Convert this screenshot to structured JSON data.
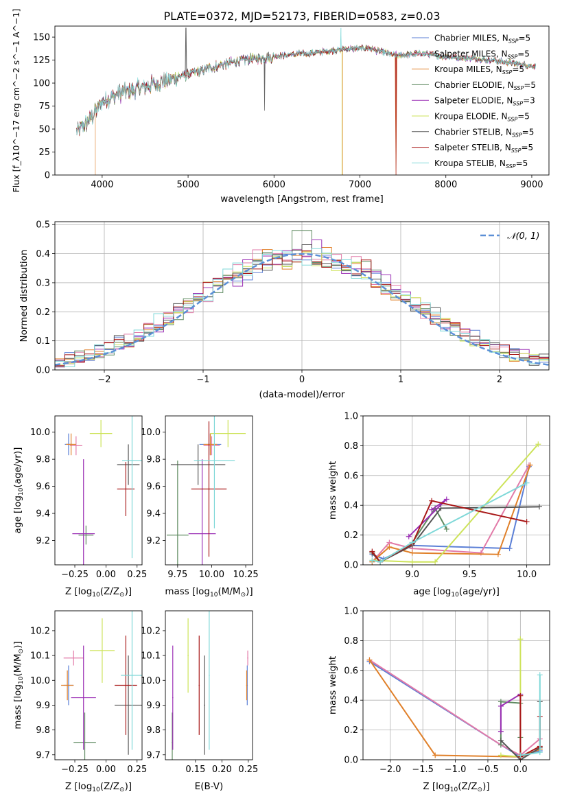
{
  "figure_title": "PLATE=0372, MJD=52173, FIBERID=0583, z=0.03",
  "colors": {
    "Chabrier MILES": "#5b7fd6",
    "Salpeter MILES": "#e27aa8",
    "Kroupa MILES": "#e0802a",
    "Chabrier ELODIE": "#5e8a60",
    "Salpeter ELODIE": "#9b2fb5",
    "Kroupa ELODIE": "#cde35a",
    "Chabrier STELIB": "#555555",
    "Salpeter STELIB": "#a81818",
    "Kroupa STELIB": "#7fd8d8"
  },
  "chart_data": [
    {
      "id": "spectrum",
      "type": "line",
      "xlabel": "wavelength [Angstrom, rest frame]",
      "ylabel": "Flux [f_λ10^−17 erg cm^−2 s^−1 A^−1]",
      "xlim": [
        3450,
        9200
      ],
      "ylim": [
        0,
        162
      ],
      "xticks": [
        4000,
        5000,
        6000,
        7000,
        8000,
        9000
      ],
      "yticks": [
        0,
        25,
        50,
        75,
        100,
        125,
        150
      ],
      "grid": false,
      "legend_position": "upper-right",
      "legend": [
        {
          "name": "Chabrier MILES",
          "label_base": "Chabrier MILES, N",
          "sub": "SSP",
          "suffix": "=5"
        },
        {
          "name": "Salpeter MILES",
          "label_base": "Salpeter MILES, N",
          "sub": "SSP",
          "suffix": "=5"
        },
        {
          "name": "Kroupa MILES",
          "label_base": "Kroupa MILES, N",
          "sub": "SSP",
          "suffix": "=5"
        },
        {
          "name": "Chabrier ELODIE",
          "label_base": "Chabrier ELODIE, N",
          "sub": "SSP",
          "suffix": "=5"
        },
        {
          "name": "Salpeter ELODIE",
          "label_base": "Salpeter ELODIE, N",
          "sub": "SSP",
          "suffix": "=3"
        },
        {
          "name": "Kroupa ELODIE",
          "label_base": "Kroupa ELODIE, N",
          "sub": "SSP",
          "suffix": "=5"
        },
        {
          "name": "Chabrier STELIB",
          "label_base": "Chabrier STELIB, N",
          "sub": "SSP",
          "suffix": "=5"
        },
        {
          "name": "Salpeter STELIB",
          "label_base": "Salpeter STELIB, N",
          "sub": "SSP",
          "suffix": "=5"
        },
        {
          "name": "Kroupa STELIB",
          "label_base": "Kroupa STELIB, N",
          "sub": "SSP",
          "suffix": "=5"
        }
      ],
      "continuum": {
        "x": [
          3700,
          3850,
          4000,
          4200,
          4500,
          4800,
          5000,
          5300,
          5600,
          5900,
          6200,
          6500,
          6800,
          7100,
          7400,
          7700,
          8000,
          8300,
          8600,
          8900,
          9050
        ],
        "y": [
          48,
          60,
          80,
          90,
          97,
          105,
          110,
          118,
          125,
          128,
          131,
          133,
          137,
          138,
          130,
          132,
          129,
          127,
          124,
          120,
          118
        ]
      },
      "dropouts": [
        {
          "series": "Kroupa MILES",
          "x": 3920
        },
        {
          "series": "Kroupa MILES",
          "x": 6800
        },
        {
          "series": "Kroupa MILES",
          "x": 7420
        },
        {
          "series": "Kroupa ELODIE",
          "x": 6790
        },
        {
          "series": "Salpeter STELIB",
          "x": 7420
        }
      ],
      "spikes": [
        {
          "series": "Chabrier STELIB",
          "x": 4975,
          "y": 160
        },
        {
          "series": "Chabrier STELIB",
          "x": 5890,
          "y": 70
        },
        {
          "series": "Kroupa STELIB",
          "x": 6780,
          "y": 160
        }
      ]
    },
    {
      "id": "residuals",
      "type": "histogram",
      "xlabel": "(data-model)/error",
      "ylabel": "Normed distribution",
      "xlim": [
        -2.5,
        2.5
      ],
      "ylim": [
        0,
        0.51
      ],
      "xticks": [
        -2,
        -1,
        0,
        1,
        2
      ],
      "yticks": [
        0.0,
        0.1,
        0.2,
        0.3,
        0.4,
        0.5
      ],
      "grid": true,
      "legend_position": "upper-right",
      "legend_label": "𝒩(0, 1)",
      "reference_curve": {
        "name": "𝒩(0, 1)",
        "mean": 0,
        "sigma": 1,
        "color": "#5b8fd6"
      },
      "bin_width": 0.1
    },
    {
      "id": "z_age",
      "type": "errorbar",
      "xlabel_pre": "Z [log",
      "xlabel_post": "(Z/Z",
      "xlabel_end": ")]",
      "ylabel_pre": "age  [log",
      "ylabel_post": "(age/yr)]",
      "xlim": [
        -0.41,
        0.29
      ],
      "ylim": [
        9.02,
        10.12
      ],
      "xticks": [
        -0.25,
        0.0,
        0.25
      ],
      "xtick_labels": [
        "−0.25",
        "0.00",
        "0.25"
      ],
      "yticks": [
        9.2,
        9.4,
        9.6,
        9.8,
        10.0
      ],
      "points": [
        {
          "series": "Chabrier MILES",
          "x": -0.3,
          "xerr": 0.03,
          "y": 9.91,
          "yerr": 0.08
        },
        {
          "series": "Salpeter MILES",
          "x": -0.24,
          "xerr": 0.05,
          "y": 9.9,
          "yerr": 0.07
        },
        {
          "series": "Kroupa MILES",
          "x": -0.28,
          "xerr": 0.04,
          "y": 9.91,
          "yerr": 0.08
        },
        {
          "series": "Chabrier ELODIE",
          "x": -0.16,
          "xerr": 0.06,
          "y": 9.24,
          "yerr": 0.07
        },
        {
          "series": "Salpeter ELODIE",
          "x": -0.18,
          "xerr": 0.09,
          "y": 9.25,
          "yerr": 0.55
        },
        {
          "series": "Kroupa ELODIE",
          "x": -0.04,
          "xerr": 0.09,
          "y": 9.99,
          "yerr": 0.1
        },
        {
          "series": "Chabrier STELIB",
          "x": 0.18,
          "xerr": 0.09,
          "y": 9.76,
          "yerr": 0.15
        },
        {
          "series": "Salpeter STELIB",
          "x": 0.16,
          "xerr": 0.07,
          "y": 9.58,
          "yerr": 0.2
        },
        {
          "series": "Kroupa STELIB",
          "x": 0.21,
          "xerr": 0.08,
          "y": 9.79,
          "yerr": 0.72
        }
      ]
    },
    {
      "id": "mass_age",
      "type": "errorbar",
      "xlabel_pre": "mass [log",
      "xlabel_post": "(M/M",
      "xlabel_end": ")]",
      "ylabel_pre": "",
      "ylabel_post": "",
      "xlim": [
        9.66,
        10.3
      ],
      "ylim": [
        9.02,
        10.12
      ],
      "xticks": [
        9.75,
        10.0,
        10.25
      ],
      "xtick_labels": [
        "9.75",
        "10.00",
        "10.25"
      ],
      "yticks": [
        9.2,
        9.4,
        9.6,
        9.8,
        10.0
      ],
      "points": [
        {
          "series": "Chabrier MILES",
          "x": 9.99,
          "xerr": 0.08,
          "y": 9.91,
          "yerr": 0.08
        },
        {
          "series": "Salpeter MILES",
          "x": 10.0,
          "xerr": 0.06,
          "y": 9.9,
          "yerr": 0.07
        },
        {
          "series": "Kroupa MILES",
          "x": 9.99,
          "xerr": 0.05,
          "y": 9.91,
          "yerr": 0.08
        },
        {
          "series": "Chabrier ELODIE",
          "x": 9.75,
          "xerr": 0.08,
          "y": 9.24,
          "yerr": 0.55
        },
        {
          "series": "Salpeter ELODIE",
          "x": 9.93,
          "xerr": 0.1,
          "y": 9.25,
          "yerr": 0.55
        },
        {
          "series": "Kroupa ELODIE",
          "x": 10.12,
          "xerr": 0.13,
          "y": 9.99,
          "yerr": 0.1
        },
        {
          "series": "Chabrier STELIB",
          "x": 9.9,
          "xerr": 0.2,
          "y": 9.76,
          "yerr": 0.15
        },
        {
          "series": "Salpeter STELIB",
          "x": 9.98,
          "xerr": 0.13,
          "y": 9.58,
          "yerr": 0.5
        },
        {
          "series": "Kroupa STELIB",
          "x": 10.02,
          "xerr": 0.15,
          "y": 9.79,
          "yerr": 0.5
        }
      ]
    },
    {
      "id": "weight_age",
      "type": "line",
      "xlabel_pre": "age  [log",
      "xlabel_post": "(age/yr)]",
      "ylabel": "mass weight",
      "xlim": [
        8.57,
        10.2
      ],
      "ylim": [
        0,
        1.0
      ],
      "xticks": [
        9.0,
        9.5,
        10.0
      ],
      "xtick_labels": [
        "9.0",
        "9.5",
        "10.0"
      ],
      "yticks": [
        0.0,
        0.2,
        0.4,
        0.6,
        0.8,
        1.0
      ],
      "ytick_labels": [
        "0.0",
        "0.2",
        "0.4",
        "0.6",
        "0.8",
        "1.0"
      ],
      "grid": true,
      "series": [
        {
          "name": "Chabrier MILES",
          "x": [
            8.65,
            8.75,
            9.0,
            9.85,
            10.02
          ],
          "y": [
            0.07,
            0.04,
            0.13,
            0.11,
            0.66
          ]
        },
        {
          "name": "Salpeter MILES",
          "x": [
            8.65,
            8.8,
            9.0,
            9.6,
            10.02
          ],
          "y": [
            0.02,
            0.15,
            0.11,
            0.08,
            0.67
          ]
        },
        {
          "name": "Kroupa MILES",
          "x": [
            8.65,
            8.8,
            9.0,
            9.75,
            10.03
          ],
          "y": [
            0.02,
            0.12,
            0.08,
            0.07,
            0.67
          ]
        },
        {
          "name": "Chabrier ELODIE",
          "x": [
            8.65,
            8.72,
            9.0,
            9.2,
            9.3
          ],
          "y": [
            0.08,
            0.02,
            0.15,
            0.38,
            0.24
          ]
        },
        {
          "name": "Salpeter ELODIE",
          "x": [
            8.97,
            9.3,
            9.17
          ],
          "y": [
            0.19,
            0.44,
            0.37
          ]
        },
        {
          "name": "Kroupa ELODIE",
          "x": [
            8.65,
            9.0,
            9.2,
            10.1
          ],
          "y": [
            0.03,
            0.02,
            0.02,
            0.81
          ]
        },
        {
          "name": "Chabrier STELIB",
          "x": [
            8.65,
            8.72,
            9.0,
            9.25,
            10.11
          ],
          "y": [
            0.08,
            0.02,
            0.13,
            0.38,
            0.39
          ]
        },
        {
          "name": "Salpeter STELIB",
          "x": [
            8.65,
            8.72,
            9.0,
            9.17,
            10.0
          ],
          "y": [
            0.09,
            0.02,
            0.14,
            0.43,
            0.29
          ]
        },
        {
          "name": "Kroupa STELIB",
          "x": [
            8.65,
            8.72,
            9.0,
            10.0
          ],
          "y": [
            0.03,
            0.02,
            0.15,
            0.55
          ]
        }
      ]
    },
    {
      "id": "z_mass",
      "type": "errorbar",
      "xlabel_pre": "Z [log",
      "xlabel_post": "(Z/Z",
      "xlabel_end": ")]",
      "ylabel_pre": "mass [log",
      "ylabel_post": "(M/M",
      "ylabel_end": ")]",
      "xlim": [
        -0.41,
        0.29
      ],
      "ylim": [
        9.68,
        10.28
      ],
      "xticks": [
        -0.25,
        0.0,
        0.25
      ],
      "xtick_labels": [
        "−0.25",
        "0.00",
        "0.25"
      ],
      "yticks": [
        9.7,
        9.8,
        9.9,
        10.0,
        10.1,
        10.2
      ],
      "points": [
        {
          "series": "Chabrier MILES",
          "x": -0.3,
          "xerr": 0.04,
          "y": 9.98,
          "yerr": 0.08
        },
        {
          "series": "Salpeter MILES",
          "x": -0.26,
          "xerr": 0.08,
          "y": 10.09,
          "yerr": 0.03
        },
        {
          "series": "Kroupa MILES",
          "x": -0.31,
          "xerr": 0.05,
          "y": 9.98,
          "yerr": 0.06
        },
        {
          "series": "Chabrier ELODIE",
          "x": -0.17,
          "xerr": 0.09,
          "y": 9.75,
          "yerr": 0.12
        },
        {
          "series": "Salpeter ELODIE",
          "x": -0.18,
          "xerr": 0.1,
          "y": 9.93,
          "yerr": 0.21
        },
        {
          "series": "Kroupa ELODIE",
          "x": -0.03,
          "xerr": 0.1,
          "y": 10.12,
          "yerr": 0.13
        },
        {
          "series": "Chabrier STELIB",
          "x": 0.18,
          "xerr": 0.11,
          "y": 9.9,
          "yerr": 0.2
        },
        {
          "series": "Salpeter STELIB",
          "x": 0.16,
          "xerr": 0.09,
          "y": 9.98,
          "yerr": 0.2
        },
        {
          "series": "Kroupa STELIB",
          "x": 0.21,
          "xerr": 0.09,
          "y": 10.02,
          "yerr": 0.3
        }
      ]
    },
    {
      "id": "ebv_mass",
      "type": "errorbar",
      "xlabel": "E(B-V)",
      "ylabel_pre": "",
      "ylabel_post": "",
      "xlim": [
        0.093,
        0.258
      ],
      "ylim": [
        9.68,
        10.28
      ],
      "xticks": [
        0.15,
        0.2,
        0.25
      ],
      "xtick_labels": [
        "0.15",
        "0.20",
        "0.25"
      ],
      "yticks": [
        9.7,
        9.8,
        9.9,
        10.0,
        10.1,
        10.2
      ],
      "points": [
        {
          "series": "Chabrier MILES",
          "x": 0.248,
          "xerr": 0.001,
          "y": 9.98,
          "yerr": 0.08
        },
        {
          "series": "Salpeter MILES",
          "x": 0.249,
          "xerr": 0.001,
          "y": 10.09,
          "yerr": 0.03
        },
        {
          "series": "Kroupa MILES",
          "x": 0.247,
          "xerr": 0.001,
          "y": 9.98,
          "yerr": 0.06
        },
        {
          "series": "Chabrier ELODIE",
          "x": 0.106,
          "xerr": 0.001,
          "y": 9.75,
          "yerr": 0.12
        },
        {
          "series": "Salpeter ELODIE",
          "x": 0.107,
          "xerr": 0.001,
          "y": 9.93,
          "yerr": 0.21
        },
        {
          "series": "Kroupa ELODIE",
          "x": 0.136,
          "xerr": 0.001,
          "y": 10.1,
          "yerr": 0.15
        },
        {
          "series": "Chabrier STELIB",
          "x": 0.167,
          "xerr": 0.001,
          "y": 9.9,
          "yerr": 0.2
        },
        {
          "series": "Salpeter STELIB",
          "x": 0.157,
          "xerr": 0.001,
          "y": 9.98,
          "yerr": 0.2
        },
        {
          "series": "Kroupa STELIB",
          "x": 0.176,
          "xerr": 0.001,
          "y": 10.02,
          "yerr": 0.3
        }
      ]
    },
    {
      "id": "weight_z",
      "type": "line",
      "xlabel_pre": "Z [log",
      "xlabel_post": "(Z/Z",
      "xlabel_end": ")]",
      "ylabel": "mass weight",
      "xlim": [
        -2.42,
        0.45
      ],
      "ylim": [
        0,
        1.0
      ],
      "xticks": [
        -2.0,
        -1.5,
        -1.0,
        -0.5,
        0.0
      ],
      "xtick_labels": [
        "−2.0",
        "−1.5",
        "−1.0",
        "−0.5",
        "0.0"
      ],
      "yticks": [
        0.0,
        0.2,
        0.4,
        0.6,
        0.8,
        1.0
      ],
      "ytick_labels": [
        "0.0",
        "0.2",
        "0.4",
        "0.6",
        "0.8",
        "1.0"
      ],
      "grid": true,
      "series": [
        {
          "name": "Chabrier MILES",
          "x": [
            -2.32,
            -0.3,
            0.0,
            0.3
          ],
          "y": [
            0.66,
            0.1,
            0.02,
            0.06
          ]
        },
        {
          "name": "Salpeter MILES",
          "x": [
            -2.32,
            -0.3,
            0.0,
            0.3
          ],
          "y": [
            0.67,
            0.1,
            0.03,
            0.14
          ]
        },
        {
          "name": "Kroupa MILES",
          "x": [
            -2.32,
            -1.31,
            0.0,
            0.3
          ],
          "y": [
            0.67,
            0.03,
            0.02,
            0.07
          ]
        },
        {
          "name": "Chabrier ELODIE",
          "x": [
            -0.3,
            -0.3,
            0.0,
            0.0
          ],
          "y": [
            0.1,
            0.39,
            0.38,
            0.15
          ]
        },
        {
          "name": "Salpeter ELODIE",
          "x": [
            -0.3,
            -0.3,
            0.0,
            0.0
          ],
          "y": [
            0.19,
            0.36,
            0.44,
            0.02
          ]
        },
        {
          "name": "Kroupa ELODIE",
          "x": [
            -0.3,
            0.0,
            0.0,
            0.0
          ],
          "y": [
            0.03,
            0.02,
            0.81,
            0.03
          ]
        },
        {
          "name": "Chabrier STELIB",
          "x": [
            -0.3,
            0.0,
            0.3,
            0.3
          ],
          "y": [
            0.13,
            0.0,
            0.08,
            0.39
          ]
        },
        {
          "name": "Salpeter STELIB",
          "x": [
            0.0,
            0.0,
            0.3,
            0.3
          ],
          "y": [
            0.43,
            0.02,
            0.09,
            0.29
          ]
        },
        {
          "name": "Kroupa STELIB",
          "x": [
            0.0,
            0.3,
            0.3
          ],
          "y": [
            0.03,
            0.05,
            0.57
          ]
        }
      ]
    }
  ]
}
